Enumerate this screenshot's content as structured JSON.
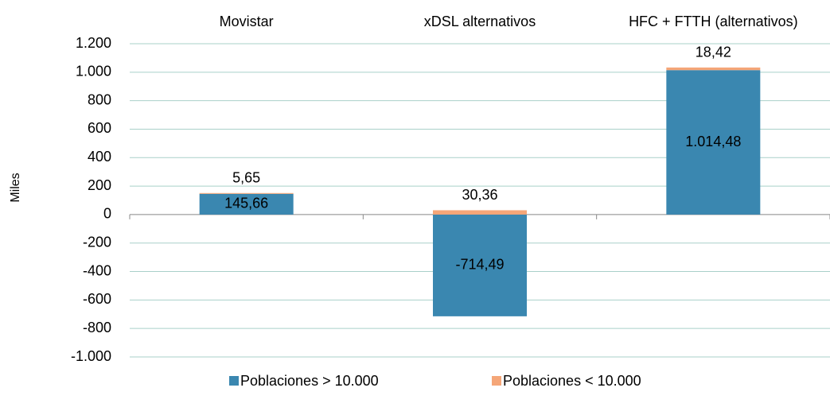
{
  "chart_data": {
    "type": "stacked_bar",
    "y_label": "Miles",
    "categories": [
      "Movistar",
      "xDSL alternativos",
      "HFC + FTTH (alternativos)"
    ],
    "series": [
      {
        "name": "Poblaciones > 10.000",
        "color": "#3a87b0",
        "values": [
          145.66,
          -714.49,
          1014.48
        ],
        "value_labels": [
          "145,66",
          "-714,49",
          "1.014,48"
        ]
      },
      {
        "name": "Poblaciones < 10.000",
        "color": "#f5a678",
        "values": [
          5.65,
          30.36,
          18.42
        ],
        "value_labels": [
          "5,65",
          "30,36",
          "18,42"
        ]
      }
    ],
    "ylim": [
      -1000,
      1200
    ],
    "yticks": [
      {
        "value": -1000,
        "label": "-1.000"
      },
      -800,
      -600,
      -400,
      -200,
      0,
      200,
      400,
      600,
      800,
      {
        "value": 1000,
        "label": "1.000"
      },
      {
        "value": 1200,
        "label": "1.200"
      }
    ],
    "grid": true,
    "legend": "bottom"
  }
}
